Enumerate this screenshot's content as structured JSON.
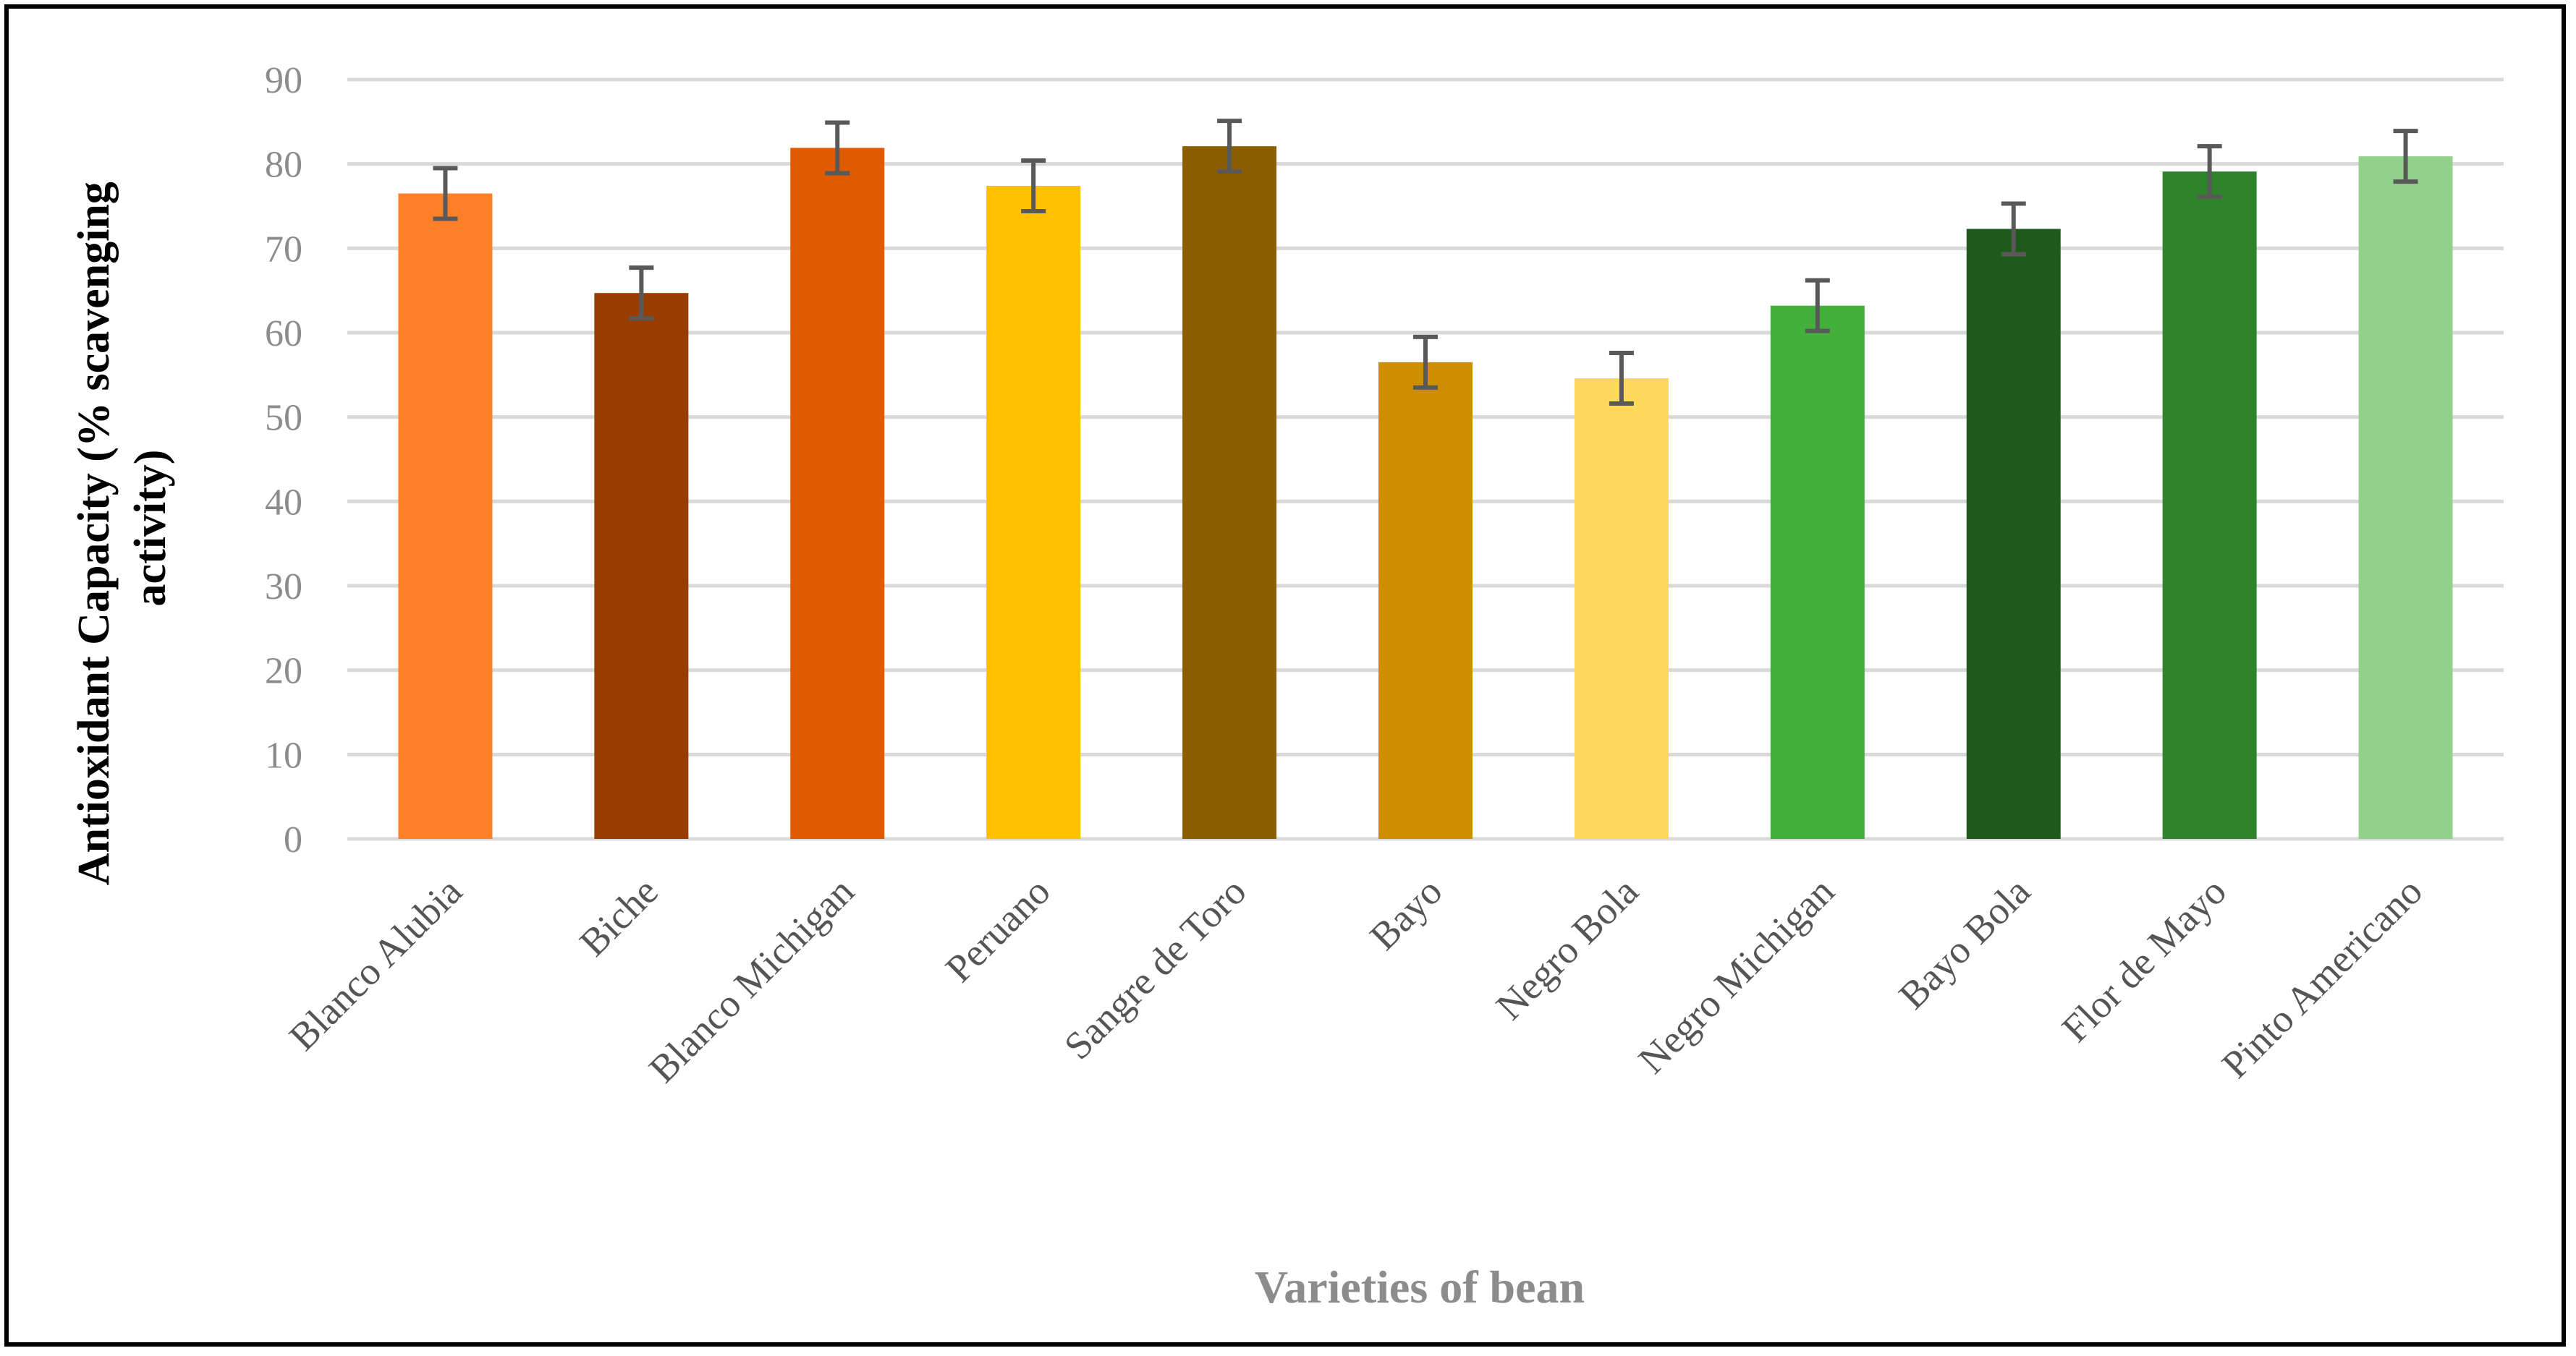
{
  "chart_data": {
    "type": "bar",
    "title": "",
    "xlabel": "Varieties of bean",
    "ylabel_lines": [
      "Antioxidant Capacity (% scavenging",
      "activity)"
    ],
    "ylim": [
      0,
      90
    ],
    "yticks": [
      0,
      10,
      20,
      30,
      40,
      50,
      60,
      70,
      80,
      90
    ],
    "grid": true,
    "legend": "none",
    "categories": [
      "Blanco Alubia",
      "Biche",
      "Blanco Michigan",
      "Peruano",
      "Sangre de Toro",
      "Bayo",
      "Negro Bola",
      "Negro Michigan",
      "Bayo Bola",
      "Flor de Mayo",
      "Pinto Americano"
    ],
    "values": [
      76.5,
      64.7,
      81.9,
      77.4,
      82.1,
      56.5,
      54.6,
      63.2,
      72.3,
      79.1,
      80.9
    ],
    "errors": [
      3.0,
      3.0,
      3.0,
      3.0,
      3.0,
      3.0,
      3.0,
      3.0,
      3.0,
      3.0,
      3.0
    ],
    "colors": [
      "#fd7f28",
      "#993c00",
      "#e05a00",
      "#ffc000",
      "#8b5e00",
      "#cf8e00",
      "#ffd95c",
      "#43b03c",
      "#1f5a1c",
      "#2f832a",
      "#92d18a"
    ],
    "gridline_color": "#d9d9d9",
    "error_bar_color": "#595959"
  }
}
